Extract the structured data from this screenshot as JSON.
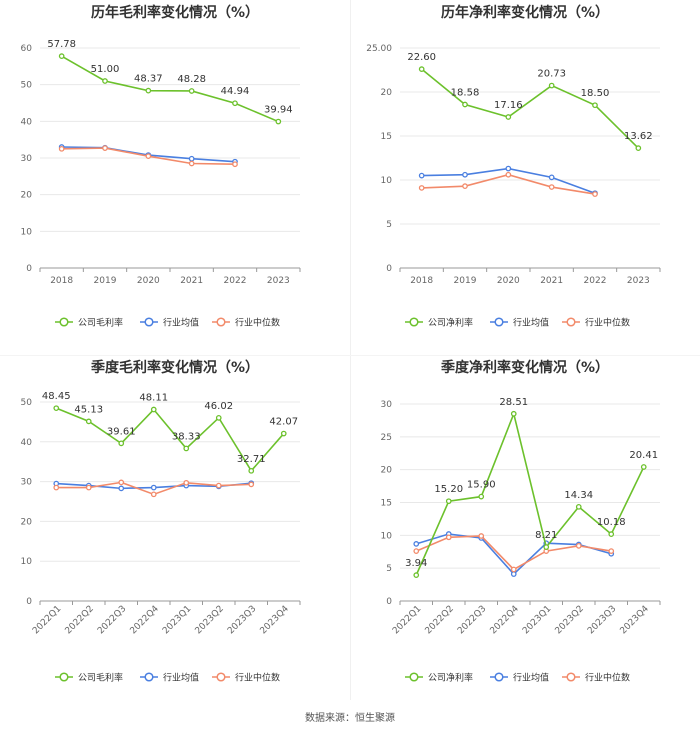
{
  "colors": {
    "company": "#6cc12c",
    "avg": "#4a7fe0",
    "median": "#f28a6a",
    "grid": "#e8e8e8",
    "axis": "#999999"
  },
  "source": "数据来源：恒生聚源",
  "chart_data": [
    {
      "type": "line",
      "title": "历年毛利率变化情况（%）",
      "categories": [
        "2018",
        "2019",
        "2020",
        "2021",
        "2022",
        "2023"
      ],
      "ylim": [
        0,
        60
      ],
      "yticks": [
        0,
        10,
        20,
        30,
        40,
        50,
        60
      ],
      "rotate_x": false,
      "series": [
        {
          "name": "公司毛利率",
          "key": "company",
          "values": [
            57.78,
            51.0,
            48.37,
            48.28,
            44.94,
            39.94
          ],
          "labels": [
            "57.78",
            "51.00",
            "48.37",
            "48.28",
            "44.94",
            "39.94"
          ]
        },
        {
          "name": "行业均值",
          "key": "avg",
          "values": [
            33.0,
            32.8,
            30.8,
            29.8,
            29.0,
            null
          ]
        },
        {
          "name": "行业中位数",
          "key": "median",
          "values": [
            32.5,
            32.7,
            30.5,
            28.5,
            28.3,
            null
          ]
        }
      ]
    },
    {
      "type": "line",
      "title": "历年净利率变化情况（%）",
      "categories": [
        "2018",
        "2019",
        "2020",
        "2021",
        "2022",
        "2023"
      ],
      "ylim": [
        0,
        25
      ],
      "yticks": [
        0,
        5,
        10,
        15,
        20,
        25
      ],
      "yticklabels": [
        "0",
        "5",
        "10",
        "15",
        "20",
        "25.00"
      ],
      "rotate_x": false,
      "series": [
        {
          "name": "公司净利率",
          "key": "company",
          "values": [
            22.6,
            18.58,
            17.16,
            20.73,
            18.5,
            13.62
          ],
          "labels": [
            "22.60",
            "18.58",
            "17.16",
            "20.73",
            "18.50",
            "13.62"
          ]
        },
        {
          "name": "行业均值",
          "key": "avg",
          "values": [
            10.5,
            10.6,
            11.3,
            10.3,
            8.5,
            null
          ]
        },
        {
          "name": "行业中位数",
          "key": "median",
          "values": [
            9.1,
            9.3,
            10.6,
            9.2,
            8.4,
            null
          ]
        }
      ]
    },
    {
      "type": "line",
      "title": "季度毛利率变化情况（%）",
      "categories": [
        "2022Q1",
        "2022Q2",
        "2022Q3",
        "2022Q4",
        "2023Q1",
        "2023Q2",
        "2023Q3",
        "2023Q4"
      ],
      "ylim": [
        0,
        50
      ],
      "yticks": [
        0,
        10,
        20,
        30,
        40,
        50
      ],
      "rotate_x": true,
      "series": [
        {
          "name": "公司毛利率",
          "key": "company",
          "values": [
            48.45,
            45.13,
            39.61,
            48.11,
            38.33,
            46.02,
            32.71,
            42.07
          ],
          "labels": [
            "48.45",
            "45.13",
            "39.61",
            "48.11",
            "38.33",
            "46.02",
            "32.71",
            "42.07"
          ]
        },
        {
          "name": "行业均值",
          "key": "avg",
          "values": [
            29.5,
            29.0,
            28.3,
            28.5,
            29.0,
            28.8,
            29.6,
            null
          ]
        },
        {
          "name": "行业中位数",
          "key": "median",
          "values": [
            28.5,
            28.5,
            29.8,
            26.8,
            29.7,
            29.0,
            29.3,
            null
          ]
        }
      ]
    },
    {
      "type": "line",
      "title": "季度净利率变化情况（%）",
      "categories": [
        "2022Q1",
        "2022Q2",
        "2022Q3",
        "2022Q4",
        "2023Q1",
        "2023Q2",
        "2023Q3",
        "2023Q4"
      ],
      "ylim": [
        0,
        30
      ],
      "yticks": [
        0,
        5,
        10,
        15,
        20,
        25,
        30
      ],
      "rotate_x": true,
      "series": [
        {
          "name": "公司净利率",
          "key": "company",
          "values": [
            3.94,
            15.2,
            15.9,
            28.51,
            8.21,
            14.34,
            10.18,
            20.41
          ],
          "labels": [
            "3.94",
            "15.20",
            "15.90",
            "28.51",
            "8.21",
            "14.34",
            "10.18",
            "20.41"
          ]
        },
        {
          "name": "行业均值",
          "key": "avg",
          "values": [
            8.7,
            10.2,
            9.6,
            4.1,
            8.8,
            8.6,
            7.2,
            null
          ]
        },
        {
          "name": "行业中位数",
          "key": "median",
          "values": [
            7.6,
            9.7,
            9.9,
            4.8,
            7.6,
            8.4,
            7.6,
            null
          ]
        }
      ]
    }
  ]
}
